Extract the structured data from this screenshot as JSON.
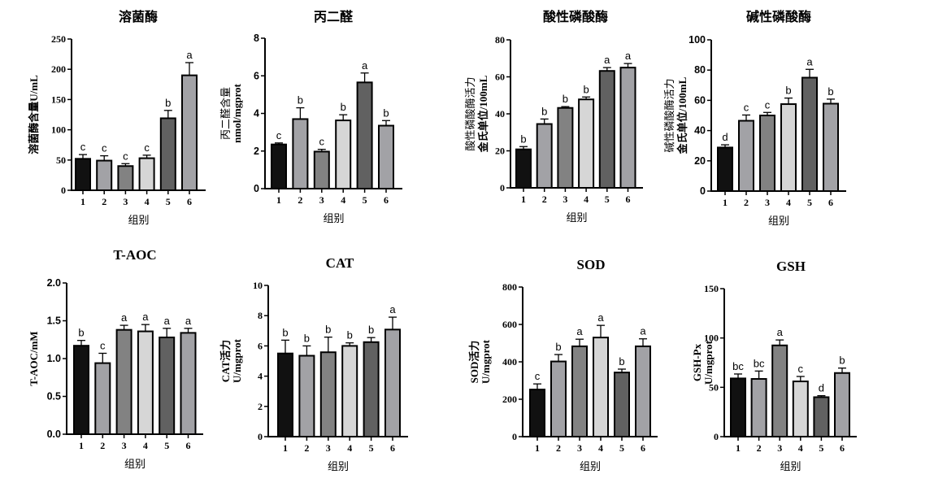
{
  "chart_data": [
    {
      "type": "bar",
      "title": "溶菌酶",
      "xlabel": "组别",
      "ylabel": [
        "溶菌酶含量U/mL"
      ],
      "categories": [
        "1",
        "2",
        "3",
        "4",
        "5",
        "6"
      ],
      "values": [
        52,
        49,
        40,
        53,
        119,
        190
      ],
      "errors": [
        7,
        8,
        4,
        5,
        13,
        21
      ],
      "letters": [
        "c",
        "c",
        "c",
        "c",
        "b",
        "a"
      ],
      "ylim": [
        0,
        250
      ],
      "yticks": [
        0,
        50,
        100,
        150,
        200,
        250
      ]
    },
    {
      "type": "bar",
      "title": "丙二醛",
      "xlabel": "组别",
      "ylabel": [
        "丙二醛含量",
        "nmol/mgprot"
      ],
      "categories": [
        "1",
        "2",
        "3",
        "4",
        "5",
        "6"
      ],
      "values": [
        2.35,
        3.7,
        1.97,
        3.63,
        5.65,
        3.35
      ],
      "errors": [
        0.08,
        0.6,
        0.12,
        0.3,
        0.5,
        0.27
      ],
      "letters": [
        "c",
        "b",
        "c",
        "b",
        "a",
        "b"
      ],
      "ylim": [
        0,
        8
      ],
      "yticks": [
        0,
        2,
        4,
        6,
        8
      ]
    },
    {
      "type": "bar",
      "title": "酸性磷酸酶",
      "xlabel": "组别",
      "ylabel": [
        "酸性磷酸酶活力",
        "金氏单位/100mL"
      ],
      "categories": [
        "1",
        "2",
        "3",
        "4",
        "5",
        "6"
      ],
      "values": [
        20.8,
        34.5,
        43.2,
        47.8,
        63.2,
        65
      ],
      "errors": [
        1.5,
        2.7,
        0.7,
        1.3,
        1.8,
        2.2
      ],
      "letters": [
        "b",
        "b",
        "b",
        "b",
        "a",
        "a"
      ],
      "ylim": [
        0,
        80
      ],
      "yticks": [
        0,
        20,
        40,
        60,
        80
      ]
    },
    {
      "type": "bar",
      "title": "碱性磷酸酶",
      "xlabel": "组别",
      "ylabel": [
        "碱性磷酸酶活力",
        "金氏单位/100mL"
      ],
      "categories": [
        "1",
        "2",
        "3",
        "4",
        "5",
        "6"
      ],
      "values": [
        28.8,
        46.5,
        50,
        57.5,
        75,
        57.8
      ],
      "errors": [
        1.8,
        3.8,
        2,
        4,
        5.5,
        3
      ],
      "letters": [
        "d",
        "c",
        "c",
        "b",
        "a",
        "b"
      ],
      "ylim": [
        0,
        100
      ],
      "yticks": [
        0,
        20,
        40,
        60,
        80,
        100
      ]
    },
    {
      "type": "bar",
      "title": "T-AOC",
      "xlabel": "组别",
      "ylabel": [
        "T-AOC/mM"
      ],
      "categories": [
        "1",
        "2",
        "3",
        "4",
        "5",
        "6"
      ],
      "values": [
        1.17,
        0.94,
        1.38,
        1.36,
        1.28,
        1.34
      ],
      "errors": [
        0.07,
        0.13,
        0.06,
        0.09,
        0.12,
        0.06
      ],
      "letters": [
        "b",
        "c",
        "a",
        "a",
        "a",
        "a"
      ],
      "ylim": [
        0,
        2
      ],
      "yticks": [
        "0.0",
        "0.5",
        "1.0",
        "1.5",
        "2.0"
      ]
    },
    {
      "type": "bar",
      "title": "CAT",
      "xlabel": "组别",
      "ylabel": [
        "CAT活力",
        "U/mgprot"
      ],
      "categories": [
        "1",
        "2",
        "3",
        "4",
        "5",
        "6"
      ],
      "values": [
        5.5,
        5.35,
        5.58,
        6.0,
        6.25,
        7.08
      ],
      "errors": [
        0.88,
        0.65,
        1.0,
        0.2,
        0.3,
        0.82
      ],
      "letters": [
        "b",
        "b",
        "b",
        "b",
        "b",
        "a"
      ],
      "ylim": [
        0,
        10
      ],
      "yticks": [
        0,
        2,
        4,
        6,
        8,
        10
      ]
    },
    {
      "type": "bar",
      "title": "SOD",
      "xlabel": "组别",
      "ylabel": [
        "SOD活力",
        "U/mgprot"
      ],
      "categories": [
        "1",
        "2",
        "3",
        "4",
        "5",
        "6"
      ],
      "values": [
        252,
        402,
        483,
        530,
        343,
        483
      ],
      "errors": [
        30,
        37,
        38,
        65,
        18,
        40
      ],
      "letters": [
        "c",
        "b",
        "a",
        "a",
        "b",
        "a"
      ],
      "ylim": [
        0,
        800
      ],
      "yticks": [
        0,
        200,
        400,
        600,
        800
      ]
    },
    {
      "type": "bar",
      "title": "GSH",
      "xlabel": "组别",
      "ylabel": [
        "GSH-Px",
        "U/mgprot"
      ],
      "categories": [
        "1",
        "2",
        "3",
        "4",
        "5",
        "6"
      ],
      "values": [
        59,
        58.5,
        92.5,
        56,
        40,
        64.5
      ],
      "errors": [
        4.5,
        8,
        5.5,
        5,
        1.5,
        5
      ],
      "letters": [
        "bc",
        "bc",
        "a",
        "c",
        "d",
        "b"
      ],
      "ylim": [
        0,
        150
      ],
      "yticks": [
        0,
        50,
        100,
        150
      ]
    }
  ],
  "colors": {
    "bars": [
      "#111111",
      "#a2a2a6",
      "#828282",
      "#d6d6d6",
      "#616161",
      "#a2a2a6"
    ],
    "outline": "#000000"
  }
}
